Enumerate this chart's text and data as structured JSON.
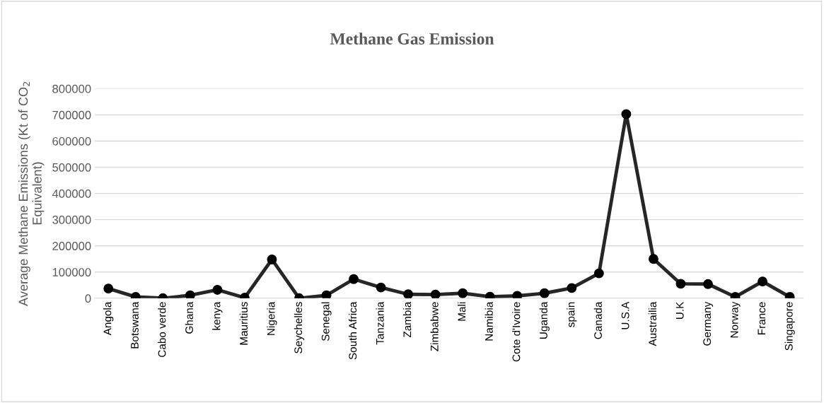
{
  "chart_data": {
    "type": "line",
    "title": "Methane Gas Emission",
    "ylabel": "Average Methane Emissions (Kt of CO$_{2}$ Equivalent)",
    "categories": [
      "Angola",
      "Botswana",
      "Cabo verde",
      "Ghana",
      "kenya",
      "Mauritius",
      "Nigeria",
      "Seychelles",
      "Senegal",
      "South Africa",
      "Tanzania",
      "Zambia",
      "Zimbabwe",
      "Mali",
      "Namibia",
      "Cote d'Ivoire",
      "Uganda",
      "spain",
      "Canada",
      "U.S.A",
      "Austrailia",
      "U.K",
      "Germany",
      "Norway",
      "France",
      "Singapore"
    ],
    "series": [
      {
        "color": "#262626",
        "values": [
          37000,
          5000,
          0,
          11000,
          32000,
          2000,
          148000,
          0,
          11000,
          73000,
          41000,
          15000,
          14000,
          19000,
          6000,
          9000,
          19000,
          39000,
          95000,
          703000,
          150000,
          55000,
          54000,
          5000,
          64000,
          5000
        ]
      }
    ],
    "ylim": [
      0,
      800000
    ],
    "yticks": [
      0,
      100000,
      200000,
      300000,
      400000,
      500000,
      600000,
      700000,
      800000
    ],
    "grid": "y",
    "marker": "circle",
    "line_style": "solid"
  }
}
